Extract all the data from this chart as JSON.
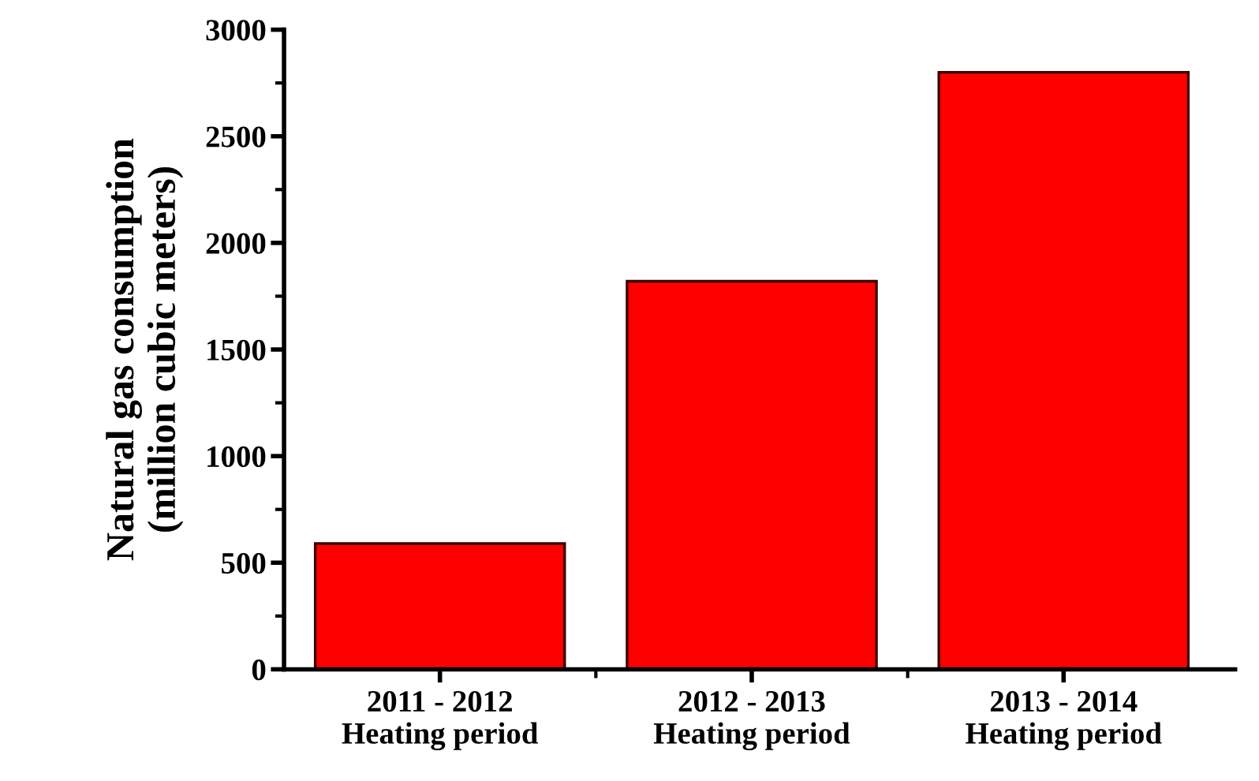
{
  "chart_data": {
    "type": "bar",
    "ylabel": "Natural gas consumption\n(million cubic meters)",
    "categories": [
      "2011 - 2012\nHeating period",
      "2012 - 2013\nHeating period",
      "2013 - 2014\nHeating period"
    ],
    "values": [
      590,
      1820,
      2800
    ],
    "color": "#ff0000",
    "ylim": [
      0,
      3000
    ],
    "yticks": [
      0,
      500,
      1000,
      1500,
      2000,
      2500,
      3000
    ],
    "grid": false,
    "legend": false
  }
}
